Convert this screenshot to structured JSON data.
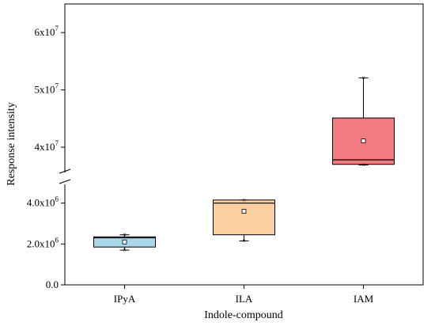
{
  "chart_data": {
    "type": "box",
    "title": "",
    "xlabel": "Indole-compound",
    "ylabel": "Response intensity",
    "categories": [
      "IPyA",
      "ILA",
      "IAM"
    ],
    "axis_break": {
      "lower_segment": [
        0,
        4800000
      ],
      "upper_segment": [
        36000000,
        65000000
      ]
    },
    "y_ticks_lower": [
      {
        "value": 0,
        "label": "0.0"
      },
      {
        "value": 2000000,
        "label": "2.0x10^6"
      },
      {
        "value": 4000000,
        "label": "4.0x10^6"
      }
    ],
    "y_ticks_upper": [
      {
        "value": 40000000,
        "label": "4x10^7"
      },
      {
        "value": 50000000,
        "label": "5x10^7"
      },
      {
        "value": 60000000,
        "label": "6x10^7"
      }
    ],
    "series": [
      {
        "category": "IPyA",
        "color": "#a8d8ec",
        "min": 1700000,
        "q1": 1850000,
        "median": 2300000,
        "q3": 2350000,
        "max": 2450000,
        "mean": 2100000
      },
      {
        "category": "ILA",
        "color": "#fbcfa0",
        "min": 2150000,
        "q1": 2450000,
        "median": 4000000,
        "q3": 4150000,
        "max": 4150000,
        "mean": 3600000
      },
      {
        "category": "IAM",
        "color": "#f47a82",
        "min": 36900000,
        "q1": 37000000,
        "median": 37800000,
        "q3": 45100000,
        "max": 52100000,
        "mean": 41100000
      }
    ]
  }
}
